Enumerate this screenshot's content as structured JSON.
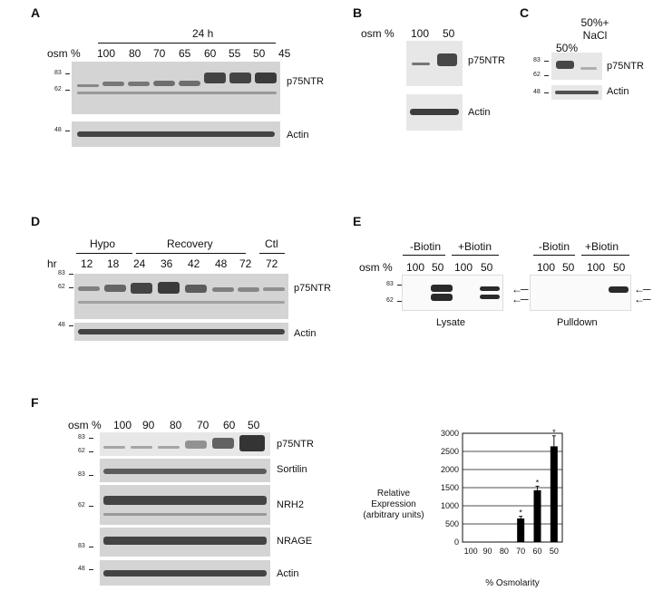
{
  "panels": {
    "A": {
      "letter": "A",
      "timepoint": "24 h",
      "osm_label": "osm %",
      "lanes": [
        "100",
        "80",
        "70",
        "65",
        "60",
        "55",
        "50",
        "45"
      ],
      "mw": {
        "m83": "83",
        "m62": "62",
        "m48": "48"
      },
      "labels": {
        "p75": "p75NTR",
        "actin": "Actin"
      }
    },
    "B": {
      "letter": "B",
      "osm_label": "osm %",
      "lanes": [
        "100",
        "50"
      ],
      "labels": {
        "p75": "p75NTR",
        "actin": "Actin"
      }
    },
    "C": {
      "letter": "C",
      "lanes": [
        "50%",
        "50%+ NaCl"
      ],
      "mw": {
        "m83": "83",
        "m62": "62",
        "m48": "48"
      },
      "labels": {
        "p75": "p75NTR",
        "actin": "Actin"
      }
    },
    "D": {
      "letter": "D",
      "hr_label": "hr",
      "groups": [
        "Hypo",
        "Recovery",
        "Ctl"
      ],
      "lanes": [
        "12",
        "18",
        "24",
        "36",
        "42",
        "48",
        "72",
        "72"
      ],
      "mw": {
        "m83": "83",
        "m62": "62",
        "m48": "48"
      },
      "labels": {
        "p75": "p75NTR",
        "actin": "Actin"
      }
    },
    "E": {
      "letter": "E",
      "osm_label": "osm %",
      "groups": [
        "-Biotin",
        "+Biotin",
        "-Biotin",
        "+Biotin"
      ],
      "lanes": [
        "100",
        "50",
        "100",
        "50",
        "100",
        "50",
        "100",
        "50"
      ],
      "mw": {
        "m83": "83",
        "m62": "62"
      },
      "captions": [
        "Lysate",
        "Pulldown"
      ]
    },
    "F": {
      "letter": "F",
      "osm_label": "osm %",
      "lanes": [
        "100",
        "90",
        "80",
        "70",
        "60",
        "50"
      ],
      "mw": {
        "m83a": "83",
        "m62a": "62",
        "m83b": "83",
        "m62b": "62",
        "m83c": "83",
        "m48": "48"
      },
      "labels": {
        "p75": "p75NTR",
        "sortilin": "Sortilin",
        "nrh2": "NRH2",
        "nrage": "NRAGE",
        "actin": "Actin"
      }
    }
  },
  "chart_data": {
    "type": "bar",
    "categories": [
      "100",
      "90",
      "80",
      "70",
      "60",
      "50"
    ],
    "values": [
      0,
      0,
      10,
      650,
      1430,
      2640
    ],
    "errors": [
      0,
      0,
      0,
      60,
      110,
      290
    ],
    "significant": [
      false,
      false,
      false,
      true,
      true,
      true
    ],
    "star": "*",
    "xlabel": "% Osmolarity",
    "ylabel": "Relative Expression (arbitrary units)",
    "ylim": [
      0,
      3000
    ],
    "yticks": [
      0,
      500,
      1000,
      1500,
      2000,
      2500,
      3000
    ],
    "grid": true,
    "color": "#000000"
  }
}
